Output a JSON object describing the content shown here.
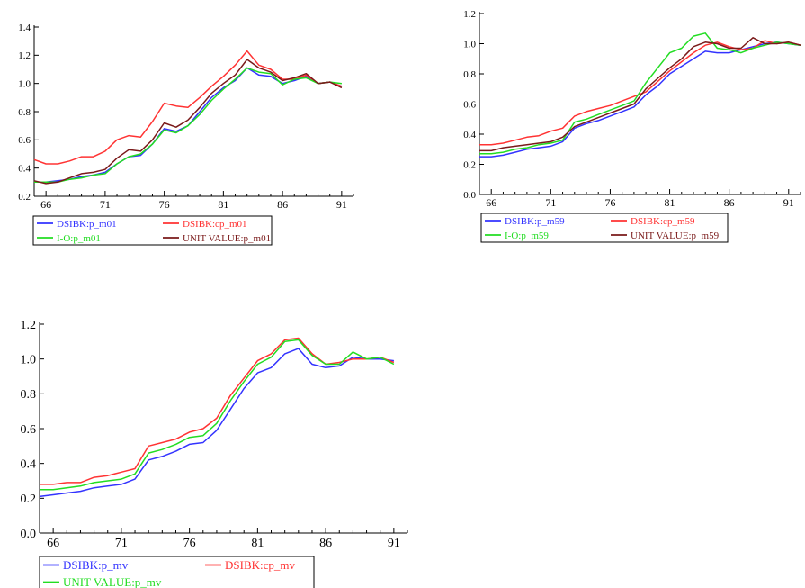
{
  "chart_data": [
    {
      "type": "line",
      "x": [
        65,
        66,
        67,
        68,
        69,
        70,
        71,
        72,
        73,
        74,
        75,
        76,
        77,
        78,
        79,
        80,
        81,
        82,
        83,
        84,
        85,
        86,
        87,
        88,
        89,
        90,
        91,
        92
      ],
      "xticks": [
        66,
        71,
        76,
        81,
        86,
        91
      ],
      "ylim": [
        0.2,
        1.4
      ],
      "yticks": [
        0.2,
        0.4,
        0.6,
        0.8,
        1.0,
        1.2,
        1.4
      ],
      "series": [
        {
          "name": "DSIBK:p_m01",
          "color": "#3333ff",
          "values": [
            0.3,
            0.3,
            0.31,
            0.32,
            0.34,
            0.35,
            0.37,
            0.43,
            0.48,
            0.49,
            0.57,
            0.68,
            0.66,
            0.7,
            0.8,
            0.9,
            0.97,
            1.02,
            1.11,
            1.06,
            1.05,
            1.0,
            1.02,
            1.05,
            1.0,
            1.01,
            0.98,
            null
          ]
        },
        {
          "name": "DSIBK:cp_m01",
          "color": "#ff3333",
          "values": [
            0.46,
            0.43,
            0.43,
            0.45,
            0.48,
            0.48,
            0.52,
            0.6,
            0.63,
            0.62,
            0.73,
            0.86,
            0.84,
            0.83,
            0.9,
            0.98,
            1.05,
            1.13,
            1.23,
            1.13,
            1.1,
            1.03,
            1.03,
            1.06,
            1.0,
            1.01,
            0.98,
            null
          ]
        },
        {
          "name": "I-O:p_m01",
          "color": "#22dd22",
          "values": [
            0.3,
            0.3,
            0.3,
            0.32,
            0.33,
            0.35,
            0.36,
            0.43,
            0.48,
            0.5,
            0.57,
            0.67,
            0.65,
            0.7,
            0.78,
            0.88,
            0.96,
            1.03,
            1.11,
            1.08,
            1.07,
            0.99,
            1.03,
            1.04,
            1.0,
            1.01,
            1.0,
            null
          ]
        },
        {
          "name": "UNIT VALUE:p_m01",
          "color": "#7a1a1a",
          "values": [
            0.31,
            0.29,
            0.3,
            0.33,
            0.36,
            0.37,
            0.39,
            0.47,
            0.53,
            0.52,
            0.6,
            0.72,
            0.69,
            0.74,
            0.83,
            0.93,
            1.0,
            1.06,
            1.17,
            1.11,
            1.08,
            1.02,
            1.04,
            1.07,
            1.0,
            1.01,
            0.97,
            null
          ]
        }
      ],
      "legend": "bottom-left"
    },
    {
      "type": "line",
      "x": [
        65,
        66,
        67,
        68,
        69,
        70,
        71,
        72,
        73,
        74,
        75,
        76,
        77,
        78,
        79,
        80,
        81,
        82,
        83,
        84,
        85,
        86,
        87,
        88,
        89,
        90,
        91,
        92
      ],
      "xticks": [
        66,
        71,
        76,
        81,
        86,
        91
      ],
      "ylim": [
        0.0,
        1.2
      ],
      "yticks": [
        0.0,
        0.2,
        0.4,
        0.6,
        0.8,
        1.0,
        1.2
      ],
      "series": [
        {
          "name": "DSIBK:p_m59",
          "color": "#3333ff",
          "values": [
            0.25,
            0.25,
            0.26,
            0.28,
            0.3,
            0.31,
            0.32,
            0.35,
            0.44,
            0.47,
            0.49,
            0.52,
            0.55,
            0.58,
            0.66,
            0.72,
            0.8,
            0.85,
            0.9,
            0.95,
            0.94,
            0.94,
            0.96,
            0.98,
            1.0,
            1.01,
            1.0,
            0.99
          ]
        },
        {
          "name": "DSIBK:cp_m59",
          "color": "#ff3333",
          "values": [
            0.33,
            0.33,
            0.34,
            0.36,
            0.38,
            0.39,
            0.42,
            0.44,
            0.52,
            0.55,
            0.57,
            0.59,
            0.62,
            0.65,
            0.68,
            0.75,
            0.82,
            0.88,
            0.94,
            0.99,
            1.01,
            0.98,
            0.96,
            0.97,
            1.02,
            1.0,
            1.01,
            0.99
          ]
        },
        {
          "name": "I-O:p_m59",
          "color": "#22dd22",
          "values": [
            0.27,
            0.27,
            0.28,
            0.3,
            0.31,
            0.33,
            0.34,
            0.36,
            0.48,
            0.5,
            0.53,
            0.56,
            0.59,
            0.62,
            0.74,
            0.84,
            0.94,
            0.97,
            1.05,
            1.07,
            0.97,
            0.96,
            0.94,
            0.97,
            0.99,
            1.01,
            1.0,
            0.99
          ]
        },
        {
          "name": "UNIT VALUE:p_m59",
          "color": "#7a1a1a",
          "values": [
            0.29,
            0.29,
            0.31,
            0.32,
            0.33,
            0.34,
            0.35,
            0.38,
            0.45,
            0.48,
            0.51,
            0.54,
            0.57,
            0.6,
            0.7,
            0.77,
            0.84,
            0.9,
            0.98,
            1.01,
            1.0,
            0.97,
            0.97,
            1.04,
            1.0,
            1.0,
            1.01,
            0.99
          ]
        }
      ],
      "legend": "bottom-left"
    },
    {
      "type": "line",
      "x": [
        65,
        66,
        67,
        68,
        69,
        70,
        71,
        72,
        73,
        74,
        75,
        76,
        77,
        78,
        79,
        80,
        81,
        82,
        83,
        84,
        85,
        86,
        87,
        88,
        89,
        90,
        91,
        92
      ],
      "xticks": [
        66,
        71,
        76,
        81,
        86,
        91
      ],
      "ylim": [
        0.0,
        1.2
      ],
      "yticks": [
        0.0,
        0.2,
        0.4,
        0.6,
        0.8,
        1.0,
        1.2
      ],
      "series": [
        {
          "name": "DSIBK:p_mv",
          "color": "#3333ff",
          "values": [
            0.21,
            0.22,
            0.23,
            0.24,
            0.26,
            0.27,
            0.28,
            0.31,
            0.42,
            0.44,
            0.47,
            0.51,
            0.52,
            0.59,
            0.71,
            0.83,
            0.92,
            0.95,
            1.03,
            1.06,
            0.97,
            0.95,
            0.96,
            1.01,
            1.0,
            1.0,
            0.99,
            null
          ]
        },
        {
          "name": "DSIBK:cp_mv",
          "color": "#ff3333",
          "values": [
            0.28,
            0.28,
            0.29,
            0.29,
            0.32,
            0.33,
            0.35,
            0.37,
            0.5,
            0.52,
            0.54,
            0.58,
            0.6,
            0.66,
            0.79,
            0.89,
            0.99,
            1.03,
            1.11,
            1.12,
            1.03,
            0.97,
            0.98,
            1.0,
            1.0,
            1.01,
            0.98,
            null
          ]
        },
        {
          "name": "UNIT VALUE:p_mv",
          "color": "#22dd22",
          "values": [
            0.25,
            0.25,
            0.26,
            0.27,
            0.29,
            0.3,
            0.31,
            0.34,
            0.46,
            0.48,
            0.51,
            0.55,
            0.56,
            0.63,
            0.76,
            0.87,
            0.97,
            1.01,
            1.1,
            1.11,
            1.02,
            0.97,
            0.97,
            1.04,
            1.0,
            1.01,
            0.97,
            null
          ]
        }
      ],
      "legend": "bottom-left"
    }
  ]
}
